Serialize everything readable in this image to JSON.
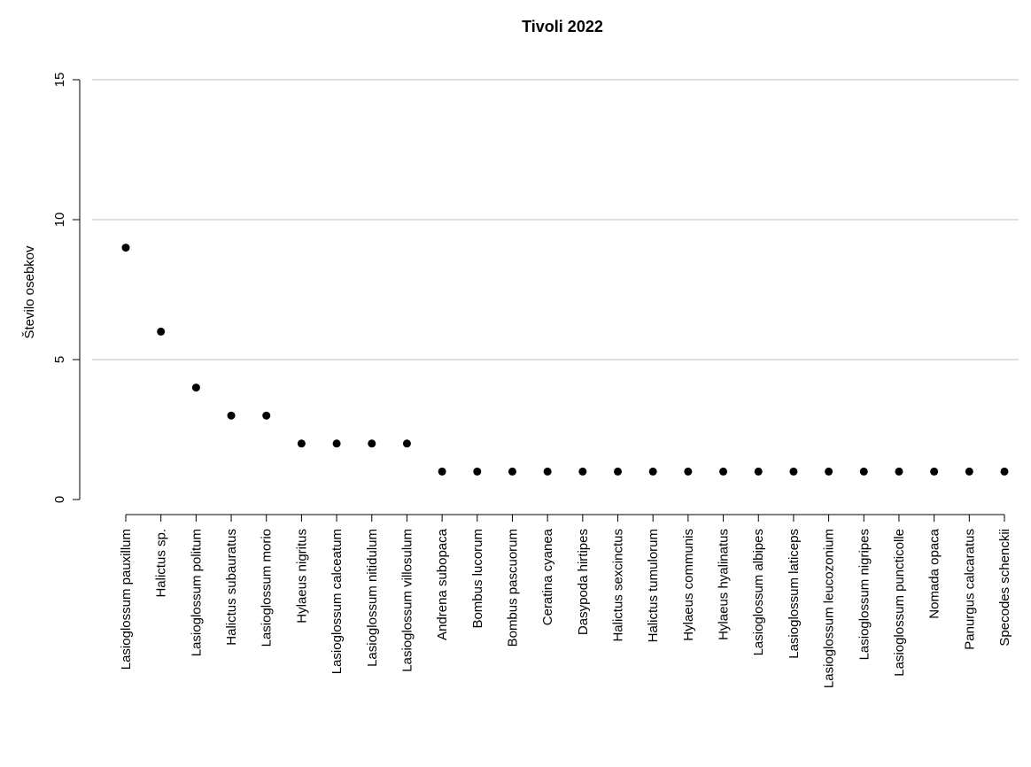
{
  "chart_data": {
    "type": "scatter",
    "title": "Tivoli 2022",
    "ylabel": "Število osebkov",
    "xlabel": "",
    "ylim": [
      0,
      15
    ],
    "yticks": [
      0,
      5,
      10,
      15
    ],
    "grid": true,
    "categories": [
      "Lasioglossum pauxillum",
      "Halictus sp.",
      "Lasioglossum politum",
      "Halictus subauratus",
      "Lasioglossum morio",
      "Hylaeus nigritus",
      "Lasioglossum calceatum",
      "Lasioglossum nitidulum",
      "Lasioglossum villosulum",
      "Andrena subopaca",
      "Bombus lucorum",
      "Bombus pascuorum",
      "Ceratina cyanea",
      "Dasypoda hirtipes",
      "Halictus sexcinctus",
      "Halictus tumulorum",
      "Hylaeus communis",
      "Hylaeus hyalinatus",
      "Lasioglossum albipes",
      "Lasioglossum laticeps",
      "Lasioglossum leucozonium",
      "Lasioglossum nigripes",
      "Lasioglossum puncticolle",
      "Nomada opaca",
      "Panurgus calcaratus",
      "Specodes schenckii"
    ],
    "values": [
      9,
      6,
      4,
      3,
      3,
      2,
      2,
      2,
      2,
      1,
      1,
      1,
      1,
      1,
      1,
      1,
      1,
      1,
      1,
      1,
      1,
      1,
      1,
      1,
      1,
      1
    ]
  }
}
